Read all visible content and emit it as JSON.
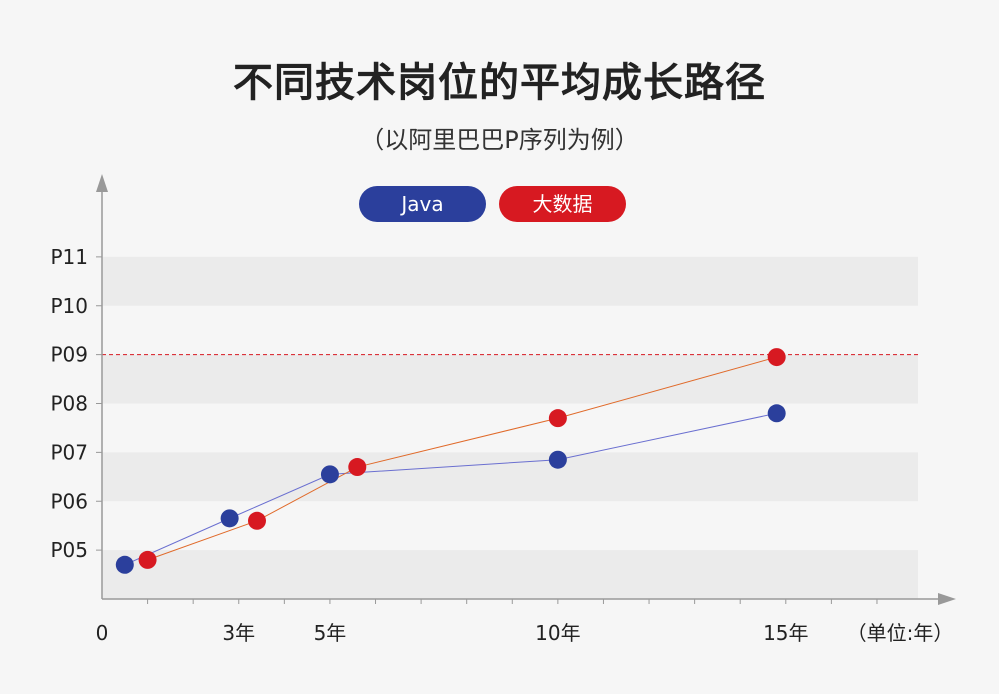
{
  "title": "不同技术岗位的平均成长路径",
  "subtitle": "（以阿里巴巴P序列为例）",
  "colors": {
    "java": "#2b3f9c",
    "bigdata": "#d71921",
    "bigdata_line": "#e06a2a",
    "band": "#ebebeb",
    "axis": "#999999"
  },
  "chart_data": {
    "type": "line",
    "x_unit_label": "（单位:年）",
    "x_ticks": [
      {
        "value": 0,
        "label": "0"
      },
      {
        "value": 3,
        "label": "3年"
      },
      {
        "value": 5,
        "label": "5年"
      },
      {
        "value": 10,
        "label": "10年"
      },
      {
        "value": 15,
        "label": "15年"
      }
    ],
    "y_ticks": [
      {
        "value": 5,
        "label": "P05"
      },
      {
        "value": 6,
        "label": "P06"
      },
      {
        "value": 7,
        "label": "P07"
      },
      {
        "value": 8,
        "label": "P08"
      },
      {
        "value": 9,
        "label": "P09"
      },
      {
        "value": 10,
        "label": "P10"
      },
      {
        "value": 11,
        "label": "P11"
      }
    ],
    "xlim": [
      0,
      17.9
    ],
    "ylim": [
      4,
      12
    ],
    "reference_line": {
      "y": 9,
      "style": "dashed",
      "color": "#d71921"
    },
    "legend_placement": "top-center",
    "series": [
      {
        "name": "Java",
        "color": "#2b3f9c",
        "line_color": "#6a6fd0",
        "points": [
          [
            0.5,
            4.7
          ],
          [
            2.8,
            5.65
          ],
          [
            5.0,
            6.55
          ],
          [
            10.0,
            6.85
          ],
          [
            14.8,
            7.8
          ]
        ]
      },
      {
        "name": "大数据",
        "color": "#d71921",
        "line_color": "#e06a2a",
        "points": [
          [
            1.0,
            4.8
          ],
          [
            3.4,
            5.6
          ],
          [
            5.6,
            6.7
          ],
          [
            10.0,
            7.7
          ],
          [
            14.8,
            8.95
          ]
        ]
      }
    ]
  }
}
